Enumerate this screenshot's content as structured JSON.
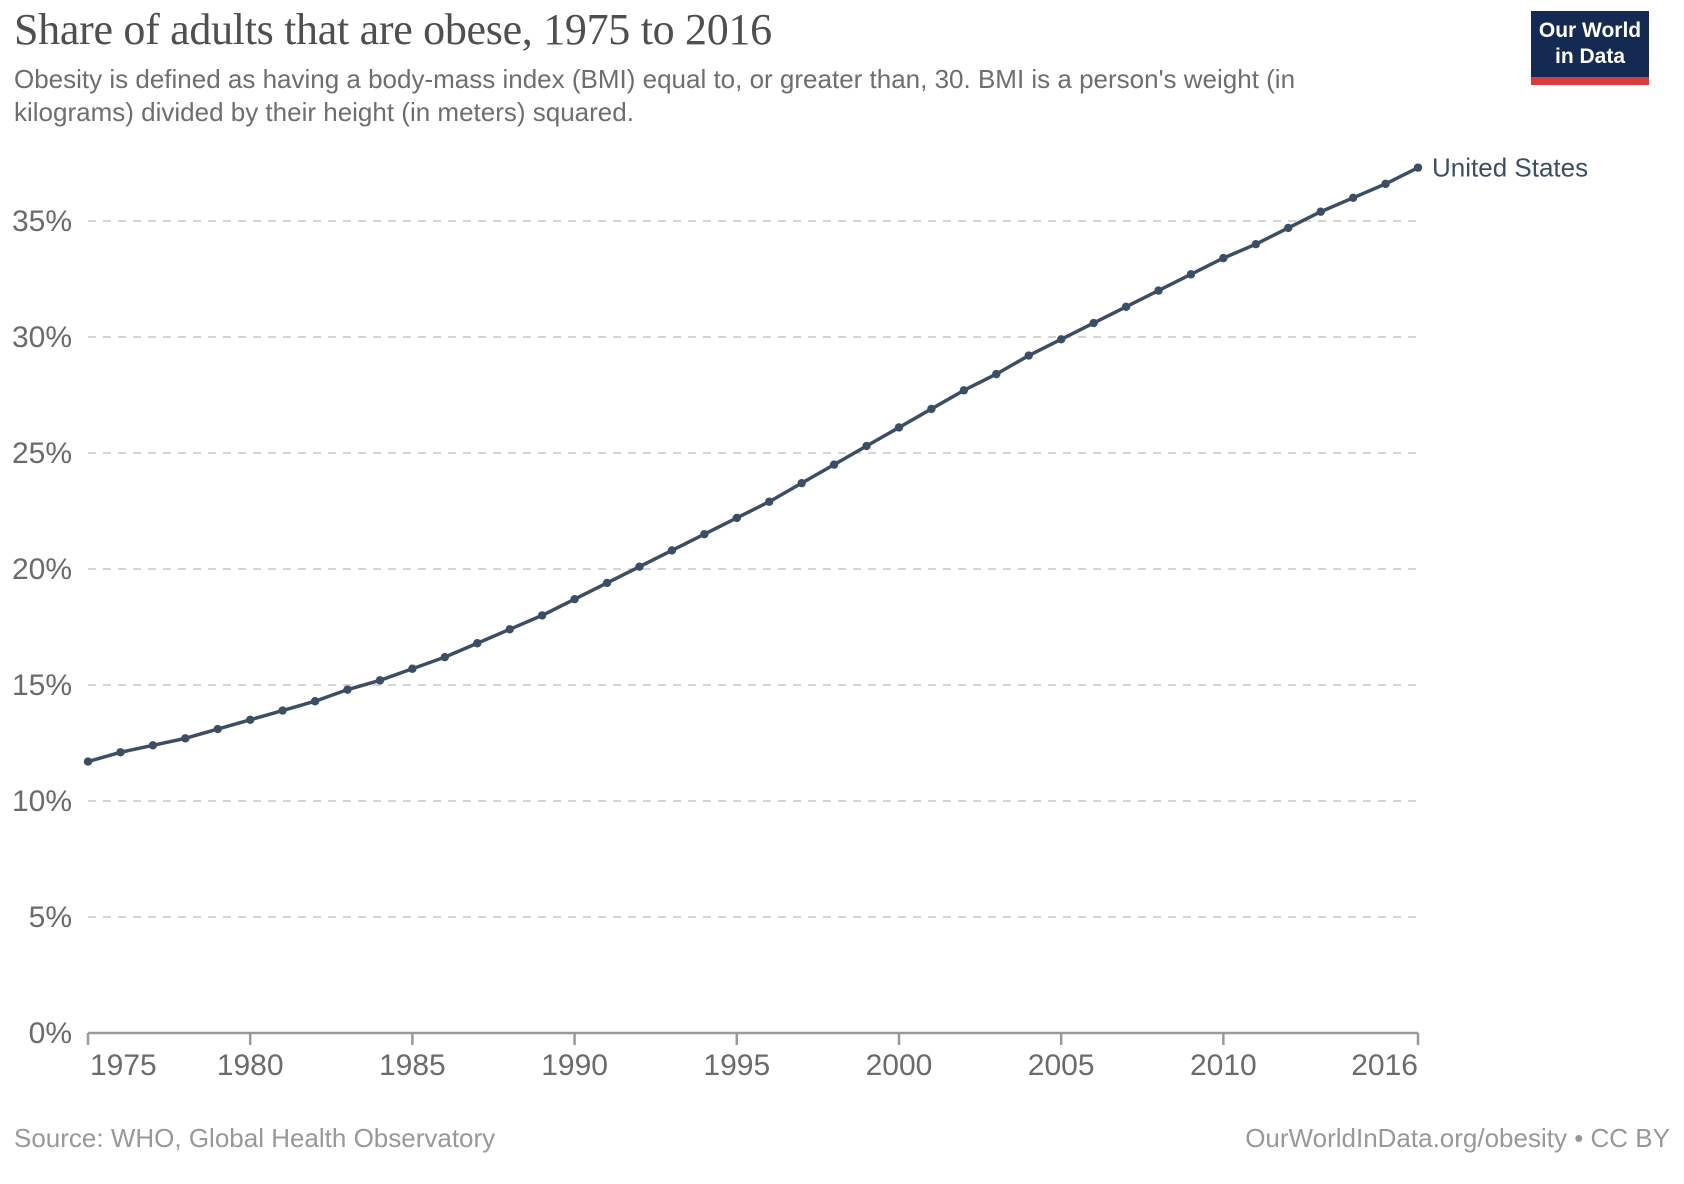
{
  "header": {
    "title": "Share of adults that are obese, 1975 to 2016",
    "subtitle": "Obesity is defined as having a body-mass index (BMI) equal to, or greater than, 30. BMI is a person's weight (in kilograms) divided by their height (in meters) squared."
  },
  "logo": {
    "line1": "Our World",
    "line2": "in Data",
    "bg_color": "#152A52",
    "accent_color": "#D93B3C"
  },
  "colors": {
    "series": "#3C4E64",
    "grid": "#d5d5d5",
    "axis": "#999999",
    "tick_label": "#6b6b6b",
    "title": "#4f4f4f",
    "subtitle": "#6e6e6e",
    "footer": "#989898"
  },
  "chart_data": {
    "type": "line",
    "title": "Share of adults that are obese, 1975 to 2016",
    "xlabel": "",
    "ylabel": "",
    "unit": "%",
    "grid": true,
    "legend_position": "end-of-line label",
    "xlim": [
      1975,
      2016
    ],
    "ylim": [
      0,
      37.3
    ],
    "x_ticks": [
      1975,
      1980,
      1985,
      1990,
      1995,
      2000,
      2005,
      2010,
      2016
    ],
    "x_tick_labels": [
      "1975",
      "1980",
      "1985",
      "1990",
      "1995",
      "2000",
      "2005",
      "2010",
      "2016"
    ],
    "y_ticks": [
      0,
      5,
      10,
      15,
      20,
      25,
      30,
      35
    ],
    "y_tick_labels": [
      "0%",
      "5%",
      "10%",
      "15%",
      "20%",
      "25%",
      "30%",
      "35%"
    ],
    "series": [
      {
        "name": "United States",
        "color": "#3C4E64",
        "x": [
          1975,
          1976,
          1977,
          1978,
          1979,
          1980,
          1981,
          1982,
          1983,
          1984,
          1985,
          1986,
          1987,
          1988,
          1989,
          1990,
          1991,
          1992,
          1993,
          1994,
          1995,
          1996,
          1997,
          1998,
          1999,
          2000,
          2001,
          2002,
          2003,
          2004,
          2005,
          2006,
          2007,
          2008,
          2009,
          2010,
          2011,
          2012,
          2013,
          2014,
          2015,
          2016
        ],
        "values": [
          11.7,
          12.1,
          12.4,
          12.7,
          13.1,
          13.5,
          13.9,
          14.3,
          14.8,
          15.2,
          15.7,
          16.2,
          16.8,
          17.4,
          18.0,
          18.7,
          19.4,
          20.1,
          20.8,
          21.5,
          22.2,
          22.9,
          23.7,
          24.5,
          25.3,
          26.1,
          26.9,
          27.7,
          28.4,
          29.2,
          29.9,
          30.6,
          31.3,
          32.0,
          32.7,
          33.4,
          34.0,
          34.7,
          35.4,
          36.0,
          36.6,
          37.3
        ]
      }
    ]
  },
  "footer": {
    "source": "Source: WHO, Global Health Observatory",
    "attribution": "OurWorldInData.org/obesity • CC BY"
  }
}
